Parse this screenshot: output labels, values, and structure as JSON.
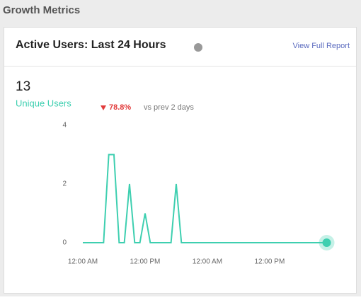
{
  "header": {
    "title": "Growth Metrics"
  },
  "card": {
    "title": "Active Users: Last 24 Hours",
    "link": "View Full Report",
    "metric": "13",
    "metric_label": "Unique Users",
    "change": "78.8%",
    "change_note": "vs prev 2 days"
  },
  "chart_data": {
    "type": "line",
    "categories": [
      "12:00 AM",
      null,
      null,
      null,
      null,
      null,
      null,
      null,
      null,
      null,
      null,
      null,
      "12:00 PM",
      null,
      null,
      null,
      null,
      null,
      null,
      null,
      null,
      null,
      null,
      null,
      "12:00 AM",
      null,
      null,
      null,
      null,
      null,
      null,
      null,
      null,
      null,
      null,
      null,
      "12:00 PM",
      null,
      null,
      null,
      null,
      null,
      null,
      null,
      null,
      null,
      null,
      null
    ],
    "series": [
      {
        "name": "Unique Users",
        "color": "#3ecfb0",
        "values": [
          0,
          0,
          0,
          0,
          0,
          3,
          3,
          0,
          0,
          2,
          0,
          0,
          1,
          0,
          0,
          0,
          0,
          0,
          2,
          0,
          0,
          0,
          0,
          0,
          0,
          0,
          0,
          0,
          0,
          0,
          0,
          0,
          0,
          0,
          0,
          0,
          0,
          0,
          0,
          0,
          0,
          0,
          0,
          0,
          0,
          0,
          0,
          0
        ]
      }
    ],
    "ylim": [
      0,
      4
    ],
    "yticks": [
      0,
      2,
      4
    ],
    "grid": false
  }
}
